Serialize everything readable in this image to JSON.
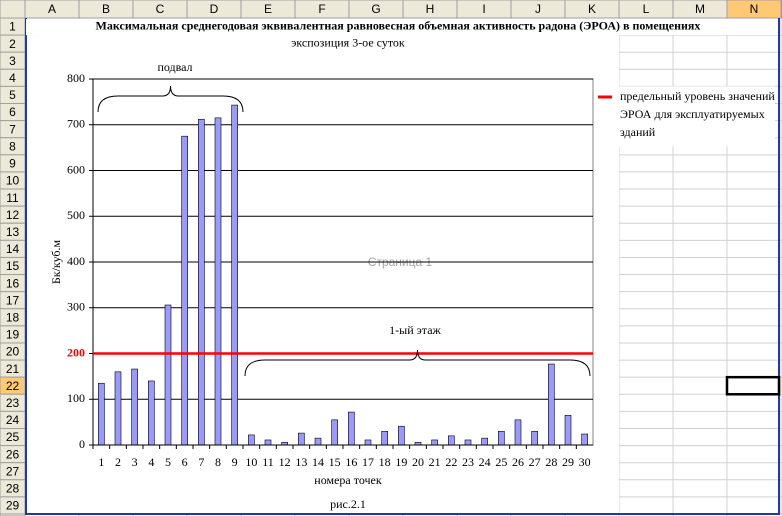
{
  "sheet": {
    "columns": [
      "A",
      "B",
      "C",
      "D",
      "E",
      "F",
      "G",
      "H",
      "I",
      "J",
      "K",
      "L",
      "M",
      "N"
    ],
    "rows": [
      1,
      2,
      3,
      4,
      5,
      6,
      7,
      8,
      9,
      10,
      11,
      12,
      13,
      14,
      15,
      16,
      17,
      18,
      19,
      20,
      21,
      22,
      23,
      24,
      25,
      26,
      27,
      28,
      29
    ],
    "selected_column": "N",
    "selected_row": 22
  },
  "watermark": "Страница 1",
  "chart_data": {
    "type": "bar",
    "title": "Максимальная среднегодовая эквивалентная равновесная объемная активность радона (ЭРОА) в помещениях",
    "subtitle": "экспозиция 3-ое суток",
    "y_label": "Бк/куб.м",
    "x_label": "номера точек",
    "caption": "рис.2.1",
    "annotations": [
      "подвал",
      "1-ый этаж"
    ],
    "categories": [
      1,
      2,
      3,
      4,
      5,
      6,
      7,
      8,
      9,
      10,
      11,
      12,
      13,
      14,
      15,
      16,
      17,
      18,
      19,
      20,
      21,
      22,
      23,
      24,
      25,
      26,
      27,
      28,
      29,
      30
    ],
    "values": [
      135,
      160,
      166,
      140,
      306,
      675,
      712,
      715,
      743,
      22,
      11,
      6,
      26,
      15,
      55,
      72,
      11,
      30,
      41,
      6,
      11,
      20,
      11,
      15,
      30,
      55,
      30,
      177,
      65,
      24
    ],
    "color": "#9999ff",
    "threshold": {
      "name": "предельный уровень значений ЭРОА для эксплуатируемых зданий",
      "value": 200,
      "color": "#ff0000"
    },
    "ylim": [
      0,
      800
    ],
    "yticks": [
      0,
      100,
      200,
      300,
      400,
      500,
      600,
      700,
      800
    ],
    "grid": true
  }
}
